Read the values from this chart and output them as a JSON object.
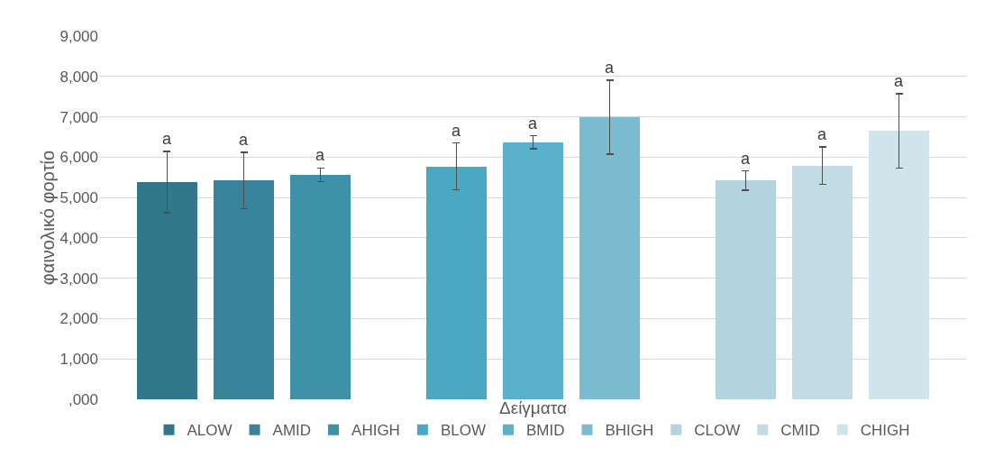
{
  "chart_data": {
    "type": "bar",
    "xlabel": "Δείγματα",
    "ylabel": "φαινολικό φορτίο",
    "categories": [
      null,
      null,
      null
    ],
    "series": [
      {
        "name": "ALOW",
        "color": "#31788a",
        "values": [
          5380,
          null,
          null
        ],
        "errors": [
          760,
          null,
          null
        ],
        "value_labels": [
          "a",
          null,
          null
        ]
      },
      {
        "name": "AMID",
        "color": "#37849a",
        "values": [
          5420,
          null,
          null
        ],
        "errors": [
          700,
          null,
          null
        ],
        "value_labels": [
          "a",
          null,
          null
        ]
      },
      {
        "name": "AHIGH",
        "color": "#3e91a6",
        "values": [
          5560,
          null,
          null
        ],
        "errors": [
          170,
          null,
          null
        ],
        "value_labels": [
          "a",
          null,
          null
        ]
      },
      {
        "name": "BLOW",
        "color": "#4aa8c3",
        "values": [
          null,
          5770,
          null
        ],
        "errors": [
          null,
          580,
          null
        ],
        "value_labels": [
          null,
          "a",
          null
        ]
      },
      {
        "name": "BMID",
        "color": "#5ab1cb",
        "values": [
          null,
          6370,
          null
        ],
        "errors": [
          null,
          160,
          null
        ],
        "value_labels": [
          null,
          "a",
          null
        ]
      },
      {
        "name": "BHIGH",
        "color": "#7abbd0",
        "values": [
          null,
          6990,
          null
        ],
        "errors": [
          null,
          920,
          null
        ],
        "value_labels": [
          null,
          "a",
          null
        ]
      },
      {
        "name": "CLOW",
        "color": "#b3d4df",
        "values": [
          null,
          null,
          5420
        ],
        "errors": [
          null,
          null,
          240
        ],
        "value_labels": [
          null,
          null,
          "a"
        ]
      },
      {
        "name": "CMID",
        "color": "#c2dce5",
        "values": [
          null,
          null,
          5790
        ],
        "errors": [
          null,
          null,
          460
        ],
        "value_labels": [
          null,
          null,
          "a"
        ]
      },
      {
        "name": "CHIGH",
        "color": "#d0e4ec",
        "values": [
          null,
          null,
          6650
        ],
        "errors": [
          null,
          null,
          920
        ],
        "value_labels": [
          null,
          null,
          "a"
        ]
      }
    ],
    "ylim": [
      0,
      9000
    ],
    "yticks": [
      {
        "value": 0,
        "label": ",000"
      },
      {
        "value": 1000,
        "label": "1,000"
      },
      {
        "value": 2000,
        "label": "2,000"
      },
      {
        "value": 3000,
        "label": "3,000"
      },
      {
        "value": 4000,
        "label": "4,000"
      },
      {
        "value": 5000,
        "label": "5,000"
      },
      {
        "value": 6000,
        "label": "6,000"
      },
      {
        "value": 7000,
        "label": "7,000"
      },
      {
        "value": 8000,
        "label": "8,000"
      },
      {
        "value": 9000,
        "label": "9,000"
      }
    ],
    "grid": "y",
    "legend": "bottom"
  }
}
